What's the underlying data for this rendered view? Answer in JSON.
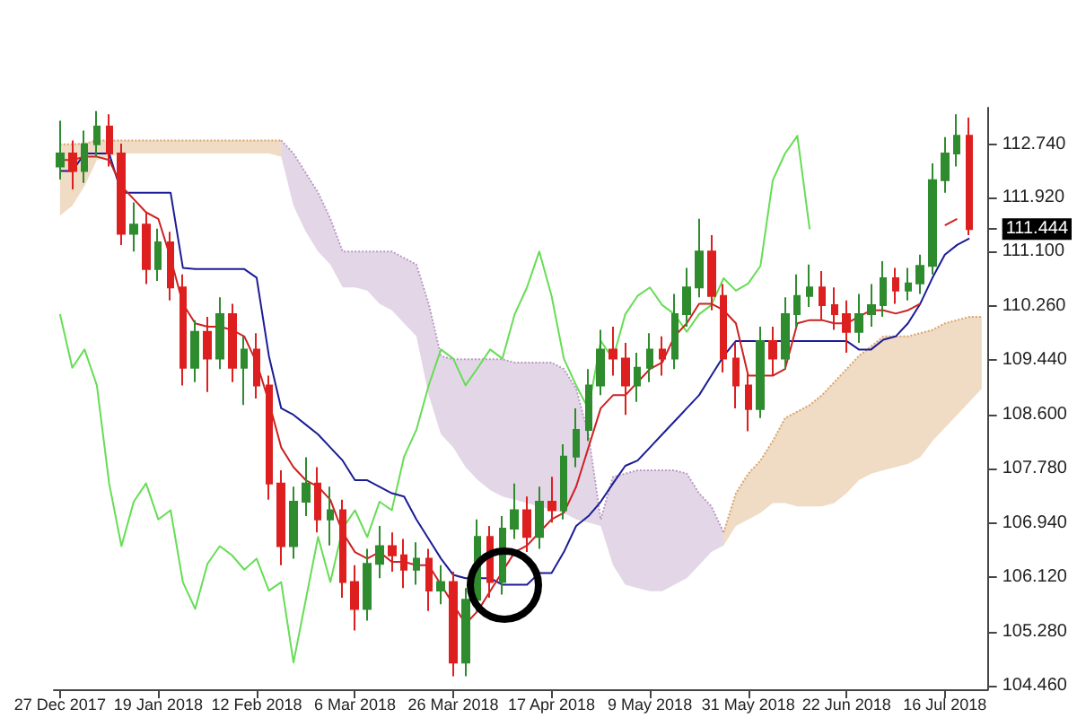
{
  "chart_data": {
    "type": "candlestick",
    "categories": [
      "27 Dec 2017",
      null,
      null,
      null,
      null,
      null,
      null,
      null,
      "19 Jan 2018",
      null,
      null,
      null,
      null,
      null,
      null,
      null,
      "12 Feb 2018",
      null,
      null,
      null,
      null,
      null,
      null,
      null,
      "6 Mar 2018",
      null,
      null,
      null,
      null,
      null,
      null,
      null,
      "26 Mar 2018",
      null,
      null,
      null,
      null,
      null,
      null,
      null,
      "17 Apr 2018",
      null,
      null,
      null,
      null,
      null,
      null,
      null,
      "9 May 2018",
      null,
      null,
      null,
      null,
      null,
      null,
      null,
      "31 May 2018",
      null,
      null,
      null,
      null,
      null,
      null,
      null,
      "22 Jun 2018",
      null,
      null,
      null,
      null,
      null,
      null,
      null,
      "16 Jul 2018",
      null,
      null,
      null
    ],
    "ohlc": [
      [
        112.4,
        113.1,
        112.2,
        112.6
      ],
      [
        112.6,
        112.8,
        112.05,
        112.33
      ],
      [
        112.33,
        112.95,
        112.15,
        112.74
      ],
      [
        112.74,
        113.25,
        112.55,
        113.01
      ],
      [
        113.01,
        113.2,
        112.4,
        112.6
      ],
      [
        112.6,
        112.75,
        111.2,
        111.37
      ],
      [
        111.37,
        111.85,
        111.1,
        111.51
      ],
      [
        111.51,
        111.7,
        110.6,
        110.83
      ],
      [
        110.83,
        111.45,
        110.65,
        111.24
      ],
      [
        111.24,
        111.4,
        110.35,
        110.55
      ],
      [
        110.55,
        110.75,
        109.05,
        109.32
      ],
      [
        109.32,
        110.05,
        109.1,
        109.87
      ],
      [
        109.87,
        110.1,
        108.95,
        109.46
      ],
      [
        109.46,
        110.4,
        109.3,
        110.14
      ],
      [
        110.14,
        110.3,
        109.1,
        109.32
      ],
      [
        109.32,
        109.8,
        108.75,
        109.6
      ],
      [
        109.6,
        109.85,
        108.85,
        109.05
      ],
      [
        109.05,
        109.2,
        107.3,
        107.55
      ],
      [
        107.55,
        107.75,
        106.3,
        106.59
      ],
      [
        106.59,
        107.5,
        106.4,
        107.27
      ],
      [
        107.27,
        107.95,
        107.05,
        107.55
      ],
      [
        107.55,
        107.8,
        106.8,
        107.0
      ],
      [
        107.0,
        107.5,
        106.6,
        107.14
      ],
      [
        107.14,
        107.3,
        105.8,
        106.04
      ],
      [
        106.04,
        106.3,
        105.3,
        105.63
      ],
      [
        105.63,
        106.55,
        105.45,
        106.32
      ],
      [
        106.32,
        106.9,
        106.1,
        106.59
      ],
      [
        106.59,
        106.8,
        106.2,
        106.45
      ],
      [
        106.45,
        106.7,
        105.95,
        106.23
      ],
      [
        106.23,
        106.65,
        106.0,
        106.4
      ],
      [
        106.4,
        106.55,
        105.6,
        105.91
      ],
      [
        105.91,
        106.3,
        105.7,
        106.04
      ],
      [
        106.04,
        106.2,
        104.6,
        104.81
      ],
      [
        104.81,
        105.95,
        104.6,
        105.77
      ],
      [
        105.77,
        107.0,
        105.6,
        106.73
      ],
      [
        106.73,
        106.9,
        105.8,
        106.04
      ],
      [
        106.04,
        107.05,
        105.85,
        106.86
      ],
      [
        106.86,
        107.55,
        106.7,
        107.14
      ],
      [
        107.14,
        107.35,
        106.5,
        106.73
      ],
      [
        106.73,
        107.5,
        106.55,
        107.27
      ],
      [
        107.27,
        107.65,
        106.95,
        107.14
      ],
      [
        107.14,
        108.15,
        107.0,
        107.96
      ],
      [
        107.96,
        108.7,
        107.8,
        108.37
      ],
      [
        108.37,
        109.3,
        108.2,
        109.05
      ],
      [
        109.05,
        109.9,
        108.9,
        109.6
      ],
      [
        109.6,
        109.95,
        109.2,
        109.46
      ],
      [
        109.46,
        109.7,
        108.6,
        109.05
      ],
      [
        109.05,
        109.55,
        108.8,
        109.32
      ],
      [
        109.32,
        109.85,
        109.1,
        109.6
      ],
      [
        109.6,
        109.8,
        109.2,
        109.46
      ],
      [
        109.46,
        110.45,
        109.3,
        110.14
      ],
      [
        110.14,
        110.85,
        109.95,
        110.55
      ],
      [
        110.55,
        111.6,
        110.4,
        111.1
      ],
      [
        111.1,
        111.35,
        110.2,
        110.42
      ],
      [
        110.42,
        110.6,
        109.25,
        109.46
      ],
      [
        109.46,
        109.7,
        108.7,
        109.05
      ],
      [
        109.05,
        109.25,
        108.35,
        108.69
      ],
      [
        108.69,
        109.95,
        108.55,
        109.73
      ],
      [
        109.73,
        109.95,
        109.2,
        109.46
      ],
      [
        109.46,
        110.4,
        109.3,
        110.14
      ],
      [
        110.14,
        110.75,
        109.95,
        110.42
      ],
      [
        110.42,
        110.9,
        110.25,
        110.55
      ],
      [
        110.55,
        110.8,
        110.05,
        110.28
      ],
      [
        110.28,
        110.55,
        109.9,
        110.14
      ],
      [
        110.14,
        110.35,
        109.55,
        109.87
      ],
      [
        109.87,
        110.45,
        109.7,
        110.14
      ],
      [
        110.14,
        110.6,
        109.95,
        110.28
      ],
      [
        110.28,
        110.95,
        110.1,
        110.69
      ],
      [
        110.69,
        110.85,
        110.3,
        110.5
      ],
      [
        110.5,
        110.85,
        110.35,
        110.61
      ],
      [
        110.61,
        111.05,
        110.45,
        110.88
      ],
      [
        110.88,
        112.45,
        110.75,
        112.19
      ],
      [
        112.19,
        112.85,
        112.0,
        112.6
      ],
      [
        112.6,
        113.2,
        112.4,
        112.87
      ],
      [
        112.87,
        113.15,
        111.35,
        111.444
      ],
      null
    ],
    "series": [
      {
        "type": "line",
        "line_style": "dotted",
        "color": "#d9a56b",
        "values": [
          112.74,
          112.74,
          112.75,
          112.8,
          112.8,
          112.8,
          112.8,
          112.8,
          112.8,
          112.8,
          112.8,
          112.8,
          112.8,
          112.8,
          112.8,
          112.8,
          112.8,
          112.8,
          112.8,
          null,
          null,
          null,
          null,
          null,
          null,
          null,
          null,
          null,
          null,
          null,
          null,
          null,
          null,
          null,
          null,
          null,
          null,
          null,
          null,
          null,
          null,
          null,
          null,
          null,
          null,
          null,
          null,
          null,
          null,
          null,
          null,
          null,
          null,
          null,
          106.8,
          107.4,
          107.7,
          107.9,
          108.2,
          108.55,
          108.65,
          108.75,
          108.9,
          109.1,
          109.3,
          109.5,
          109.65,
          109.8,
          109.8,
          109.8,
          109.85,
          109.9,
          110.0,
          110.05,
          110.1,
          110.1
        ],
        "upper": [
          112.74,
          112.74,
          112.75,
          112.8,
          112.8,
          112.8,
          112.8,
          112.8,
          112.8,
          112.8,
          112.8,
          112.8,
          112.8,
          112.8,
          112.8,
          112.8,
          112.8,
          112.8,
          112.8,
          null,
          null,
          null,
          null,
          null,
          null,
          null,
          null,
          null,
          null,
          null,
          null,
          null,
          null,
          null,
          null,
          null,
          null,
          null,
          null,
          null,
          null,
          null,
          null,
          null,
          null,
          null,
          null,
          null,
          null,
          null,
          null,
          null,
          null,
          null,
          106.8,
          107.4,
          107.7,
          107.9,
          108.2,
          108.55,
          108.65,
          108.75,
          108.9,
          109.1,
          109.3,
          109.5,
          109.65,
          109.8,
          109.8,
          109.8,
          109.85,
          109.9,
          110.0,
          110.05,
          110.1,
          110.1
        ],
        "lower": [
          111.65,
          111.8,
          112.1,
          112.5,
          112.55,
          112.6,
          112.6,
          112.6,
          112.6,
          112.6,
          112.6,
          112.6,
          112.6,
          112.6,
          112.6,
          112.6,
          112.6,
          112.6,
          112.55,
          null,
          null,
          null,
          null,
          null,
          null,
          null,
          null,
          null,
          null,
          null,
          null,
          null,
          null,
          null,
          null,
          null,
          null,
          null,
          null,
          null,
          null,
          null,
          null,
          null,
          null,
          null,
          null,
          null,
          null,
          null,
          null,
          null,
          null,
          null,
          106.6,
          106.9,
          107.0,
          107.1,
          107.25,
          107.25,
          107.2,
          107.2,
          107.2,
          107.25,
          107.4,
          107.6,
          107.7,
          107.75,
          107.8,
          107.85,
          107.95,
          108.2,
          108.4,
          108.6,
          108.8,
          109.0
        ]
      },
      {
        "type": "line",
        "line_style": "dotted",
        "color": "#b99ac4",
        "values": [
          null,
          null,
          null,
          null,
          null,
          null,
          null,
          null,
          null,
          null,
          null,
          null,
          null,
          null,
          null,
          null,
          null,
          null,
          112.8,
          112.6,
          112.3,
          112.0,
          111.6,
          111.1,
          111.1,
          111.1,
          111.1,
          111.1,
          111.0,
          110.9,
          110.3,
          109.5,
          109.45,
          109.45,
          109.45,
          109.45,
          109.45,
          109.4,
          109.4,
          109.4,
          109.4,
          109.3,
          109.0,
          108.3,
          107.0,
          107.65,
          107.7,
          107.75,
          107.75,
          107.75,
          107.75,
          107.7,
          107.4,
          107.2,
          106.8,
          null,
          null,
          null,
          null,
          null,
          null,
          null,
          null,
          null,
          null,
          null,
          null,
          null,
          null,
          null,
          null,
          null,
          null,
          null,
          null,
          null
        ],
        "upper": [
          null,
          null,
          null,
          null,
          null,
          null,
          null,
          null,
          null,
          null,
          null,
          null,
          null,
          null,
          null,
          null,
          null,
          null,
          112.8,
          112.6,
          112.3,
          112.0,
          111.6,
          111.1,
          111.1,
          111.1,
          111.1,
          111.1,
          111.0,
          110.9,
          110.3,
          109.5,
          109.45,
          109.45,
          109.45,
          109.45,
          109.45,
          109.4,
          109.4,
          109.4,
          109.4,
          109.3,
          109.0,
          108.3,
          107.0,
          107.65,
          107.7,
          107.75,
          107.75,
          107.75,
          107.75,
          107.7,
          107.4,
          107.2,
          106.8,
          null,
          null,
          null,
          null,
          null,
          null,
          null,
          null,
          null,
          null,
          null,
          null,
          null,
          null,
          null,
          null,
          null,
          null,
          null,
          null,
          null
        ],
        "lower": [
          null,
          null,
          null,
          null,
          null,
          null,
          null,
          null,
          null,
          null,
          null,
          null,
          null,
          null,
          null,
          null,
          null,
          null,
          112.55,
          111.8,
          111.4,
          111.1,
          110.9,
          110.55,
          110.55,
          110.5,
          110.3,
          110.2,
          110.0,
          109.8,
          108.9,
          108.3,
          108.1,
          107.8,
          107.6,
          107.45,
          107.35,
          107.3,
          107.25,
          107.2,
          107.15,
          107.1,
          107.0,
          106.95,
          106.9,
          106.3,
          106.0,
          105.95,
          105.9,
          105.9,
          106.0,
          106.1,
          106.3,
          106.5,
          106.6,
          null,
          null,
          null,
          null,
          null,
          null,
          null,
          null,
          null,
          null,
          null,
          null,
          null,
          null,
          null,
          null,
          null,
          null,
          null,
          null,
          null
        ]
      },
      {
        "type": "line",
        "color": "#66dd55",
        "values": [
          110.14,
          109.32,
          109.6,
          109.05,
          107.55,
          106.59,
          107.27,
          107.55,
          107.0,
          107.14,
          106.04,
          105.63,
          106.32,
          106.59,
          106.45,
          106.23,
          106.4,
          105.91,
          106.04,
          104.81,
          105.77,
          106.73,
          106.04,
          106.86,
          107.14,
          106.73,
          107.27,
          107.14,
          107.96,
          108.37,
          109.05,
          109.6,
          109.46,
          109.05,
          109.32,
          109.6,
          109.46,
          110.14,
          110.55,
          111.1,
          110.42,
          109.46,
          109.05,
          108.69,
          109.73,
          109.46,
          110.14,
          110.42,
          110.55,
          110.28,
          110.14,
          109.87,
          110.14,
          110.28,
          110.69,
          110.5,
          110.61,
          110.88,
          112.19,
          112.6,
          112.87,
          111.44,
          null,
          null,
          null,
          null,
          null,
          null,
          null,
          null,
          null,
          null,
          null,
          null,
          null,
          null
        ]
      },
      {
        "type": "line",
        "color": "#1c1c96",
        "values": [
          112.33,
          112.33,
          112.6,
          112.6,
          112.6,
          112.0,
          112.0,
          112.0,
          112.0,
          112.0,
          110.85,
          110.83,
          110.83,
          110.83,
          110.83,
          110.83,
          110.7,
          109.5,
          108.7,
          108.6,
          108.45,
          108.3,
          108.1,
          107.9,
          107.6,
          107.6,
          107.5,
          107.4,
          107.35,
          107.0,
          106.7,
          106.4,
          106.15,
          106.1,
          106.1,
          106.1,
          106.0,
          106.0,
          106.0,
          106.18,
          106.18,
          106.5,
          106.9,
          107.05,
          107.27,
          107.55,
          107.82,
          107.9,
          108.1,
          108.3,
          108.5,
          108.7,
          108.9,
          109.2,
          109.5,
          109.73,
          109.73,
          109.73,
          109.73,
          109.73,
          109.73,
          109.73,
          109.73,
          109.73,
          109.73,
          109.6,
          109.6,
          109.75,
          109.8,
          110.0,
          110.3,
          110.7,
          111.05,
          111.2,
          111.3,
          null
        ]
      },
      {
        "type": "line",
        "color": "#cc2222",
        "values": [
          112.5,
          112.5,
          112.55,
          112.55,
          112.5,
          112.1,
          111.9,
          111.7,
          111.6,
          111.0,
          110.3,
          110.0,
          109.95,
          109.95,
          109.9,
          109.8,
          109.4,
          108.8,
          108.1,
          107.8,
          107.6,
          107.5,
          107.3,
          106.8,
          106.5,
          106.4,
          106.5,
          106.35,
          106.35,
          106.3,
          106.3,
          106.0,
          105.7,
          105.4,
          105.6,
          105.9,
          106.2,
          106.5,
          106.6,
          106.8,
          107.0,
          107.1,
          107.5,
          108.1,
          108.7,
          108.9,
          108.9,
          109.1,
          109.3,
          109.4,
          109.8,
          110.0,
          110.3,
          110.3,
          110.2,
          110.0,
          109.2,
          109.2,
          109.2,
          109.3,
          110.0,
          110.05,
          110.05,
          110.0,
          110.0,
          110.1,
          110.2,
          110.2,
          110.15,
          110.2,
          110.3,
          null,
          111.5,
          111.6,
          null,
          null
        ]
      }
    ],
    "ylim": [
      104.4,
      113.3
    ],
    "yticks": [
      {
        "value": 104.46,
        "label": "104.460"
      },
      {
        "value": 105.28,
        "label": "105.280"
      },
      {
        "value": 106.12,
        "label": "106.120"
      },
      {
        "value": 106.94,
        "label": "106.940"
      },
      {
        "value": 107.78,
        "label": "107.780"
      },
      {
        "value": 108.6,
        "label": "108.600"
      },
      {
        "value": 109.44,
        "label": "109.440"
      },
      {
        "value": 110.26,
        "label": "110.260"
      },
      {
        "value": 111.1,
        "label": "111.100"
      },
      {
        "value": 111.444,
        "label": "111.444"
      },
      {
        "value": 111.92,
        "label": "111.920"
      },
      {
        "value": 112.74,
        "label": "112.740"
      }
    ],
    "grid": false,
    "marker": "none"
  }
}
